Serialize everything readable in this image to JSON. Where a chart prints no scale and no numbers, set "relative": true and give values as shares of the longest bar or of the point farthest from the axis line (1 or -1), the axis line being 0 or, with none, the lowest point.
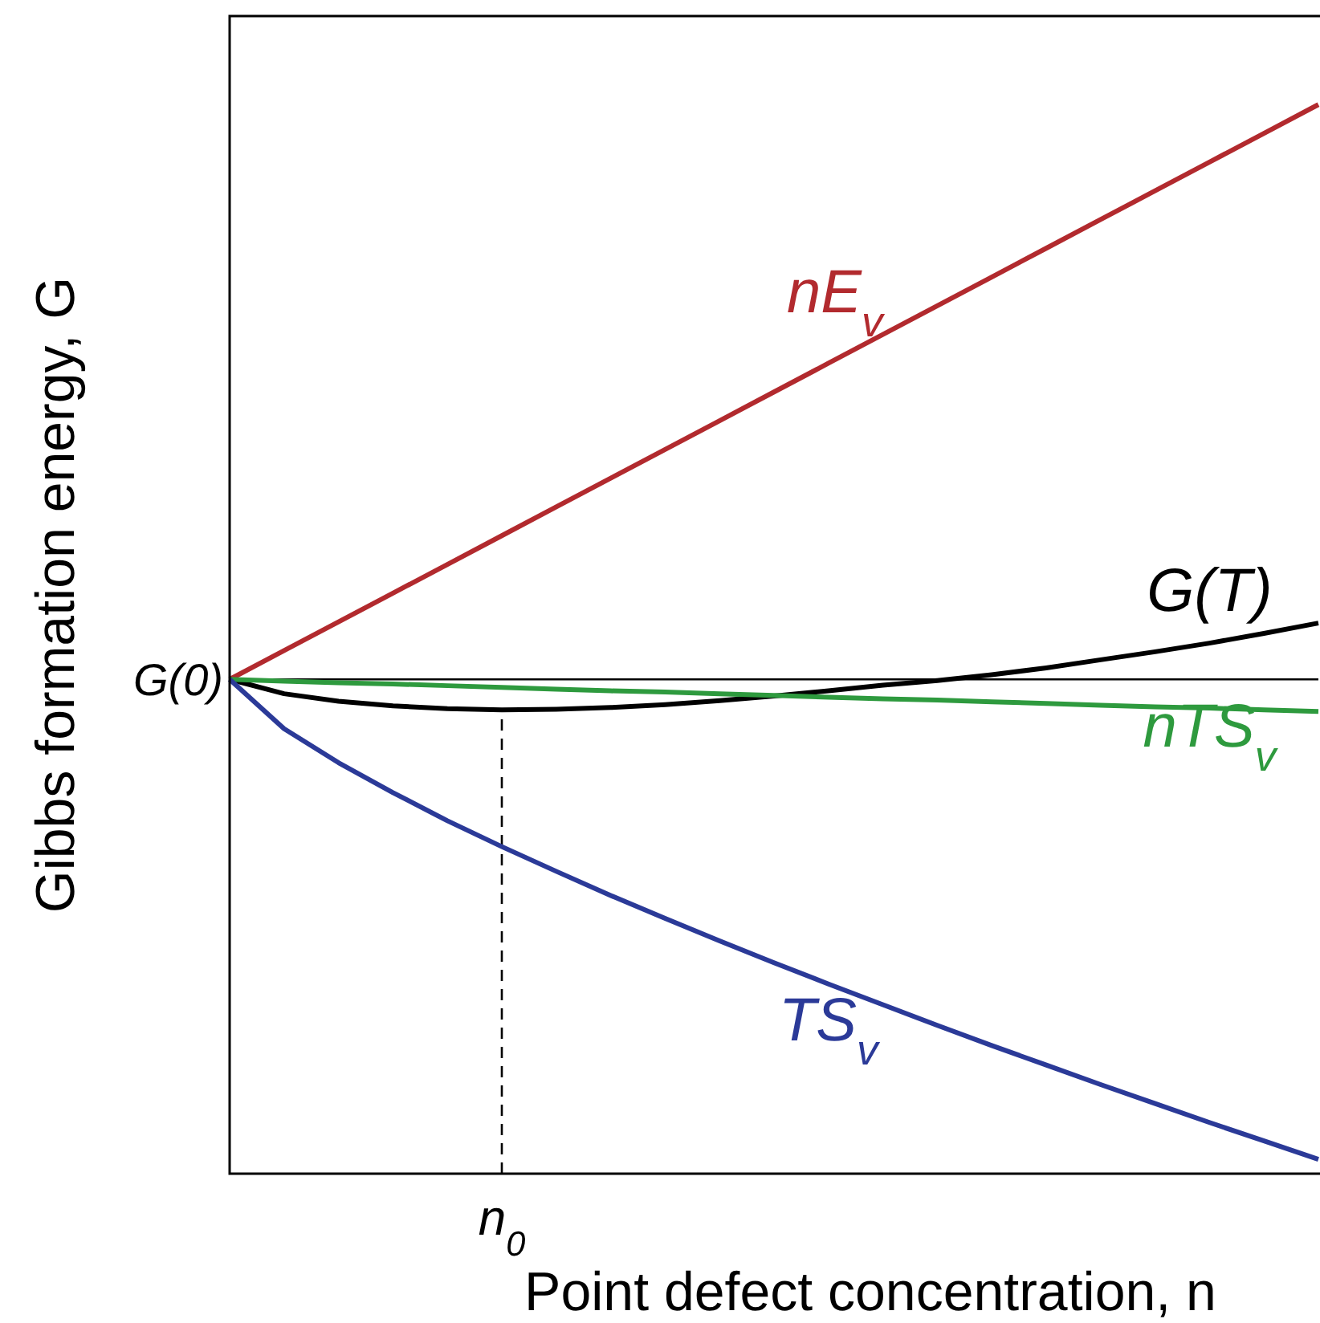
{
  "chart_data": {
    "type": "line",
    "relative": true,
    "xlabel": "Point defect concentration, n",
    "ylabel": "Gibbs formation energy, G",
    "categories": [
      null,
      null,
      null,
      null,
      null,
      null,
      null,
      null,
      null,
      null,
      null,
      null,
      null,
      null,
      null,
      null,
      null,
      null,
      null,
      null,
      null
    ],
    "series": [
      {
        "name": "nE$_{v}$",
        "color": "#b22a2e",
        "values": [
          0,
          0.05,
          0.1,
          0.15,
          0.2,
          0.25,
          0.3,
          0.35,
          0.4,
          0.45,
          0.5,
          0.55,
          0.6,
          0.65,
          0.7,
          0.75,
          0.8,
          0.85,
          0.9,
          0.95,
          1
        ]
      },
      {
        "name": "G(T)",
        "color": "#000000",
        "values": [
          0,
          -0.025,
          -0.038,
          -0.046,
          -0.051,
          -0.053,
          -0.052,
          -0.049,
          -0.044,
          -0.037,
          -0.029,
          -0.02,
          -0.01,
          -0.002,
          0.008,
          0.02,
          0.034,
          0.048,
          0.063,
          0.08,
          0.098
        ]
      },
      {
        "name": "nTS$_{v}$",
        "color": "#2e9a3e",
        "values": [
          0,
          -0.003,
          -0.006,
          -0.008,
          -0.011,
          -0.014,
          -0.017,
          -0.02,
          -0.022,
          -0.025,
          -0.028,
          -0.031,
          -0.034,
          -0.036,
          -0.039,
          -0.042,
          -0.045,
          -0.048,
          -0.05,
          -0.053,
          -0.056
        ]
      },
      {
        "name": "TS$_{v}$",
        "color": "#2b3a98",
        "values": [
          0,
          -0.086,
          -0.145,
          -0.197,
          -0.246,
          -0.291,
          -0.334,
          -0.376,
          -0.416,
          -0.455,
          -0.493,
          -0.53,
          -0.566,
          -0.602,
          -0.637,
          -0.671,
          -0.705,
          -0.738,
          -0.771,
          -0.803,
          -0.835
        ]
      }
    ],
    "annotations": [
      "G(0)",
      "n$_{0}$"
    ],
    "legend": false,
    "grid": false,
    "marker": "none",
    "line_style": "solid"
  }
}
